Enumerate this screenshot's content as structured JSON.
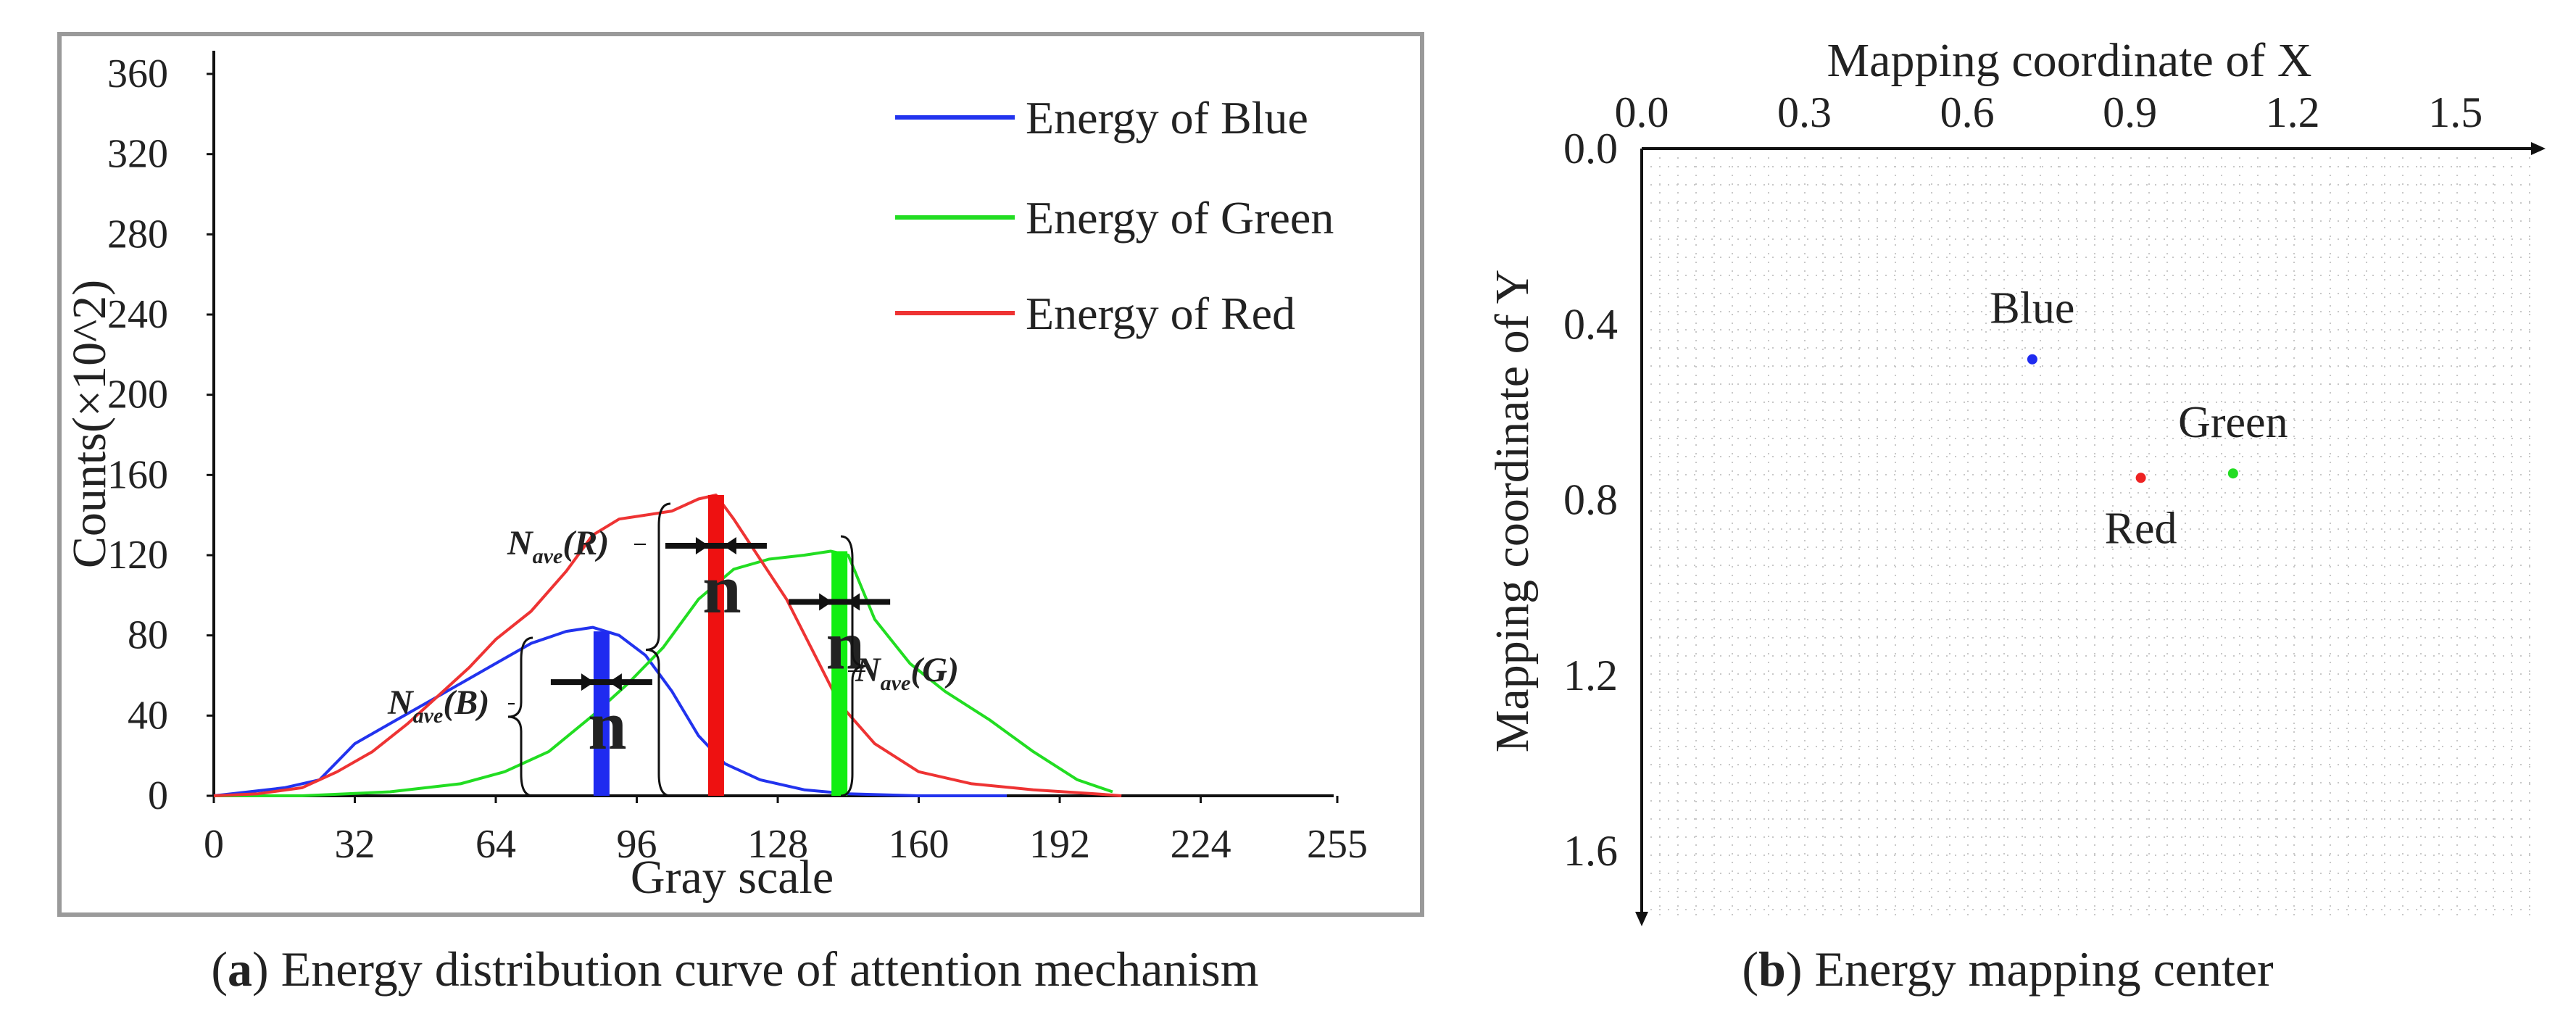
{
  "chart_data": [
    {
      "type": "line",
      "panel": "a",
      "title": "",
      "xlabel": "Gray scale",
      "ylabel": "Counts(×10^2)",
      "xlim": [
        0,
        255
      ],
      "ylim": [
        0,
        360
      ],
      "x_ticks": [
        "0",
        "32",
        "64",
        "96",
        "128",
        "160",
        "192",
        "224",
        "255"
      ],
      "x_tick_values": [
        0,
        32,
        64,
        96,
        128,
        160,
        192,
        224,
        255
      ],
      "y_ticks": [
        "0",
        "40",
        "80",
        "120",
        "160",
        "200",
        "240",
        "280",
        "320",
        "360"
      ],
      "y_tick_values": [
        0,
        40,
        80,
        120,
        160,
        200,
        240,
        280,
        320,
        360
      ],
      "legend_position": "top-right",
      "series": [
        {
          "name": "Energy of Blue",
          "color": "#2233ee",
          "points": [
            [
              0,
              0
            ],
            [
              8,
              2
            ],
            [
              16,
              4
            ],
            [
              24,
              8
            ],
            [
              32,
              26
            ],
            [
              40,
              36
            ],
            [
              48,
              46
            ],
            [
              56,
              56
            ],
            [
              64,
              66
            ],
            [
              72,
              76
            ],
            [
              80,
              82
            ],
            [
              86,
              84
            ],
            [
              92,
              80
            ],
            [
              98,
              70
            ],
            [
              104,
              52
            ],
            [
              110,
              30
            ],
            [
              116,
              16
            ],
            [
              124,
              8
            ],
            [
              134,
              3
            ],
            [
              144,
              1
            ],
            [
              160,
              0
            ],
            [
              180,
              0
            ]
          ]
        },
        {
          "name": "Energy of Green",
          "color": "#22dd22",
          "points": [
            [
              0,
              0
            ],
            [
              20,
              0
            ],
            [
              40,
              2
            ],
            [
              56,
              6
            ],
            [
              66,
              12
            ],
            [
              76,
              22
            ],
            [
              86,
              40
            ],
            [
              94,
              56
            ],
            [
              102,
              74
            ],
            [
              110,
              98
            ],
            [
              118,
              113
            ],
            [
              126,
              118
            ],
            [
              134,
              120
            ],
            [
              140,
              122
            ],
            [
              144,
              120
            ],
            [
              150,
              88
            ],
            [
              158,
              66
            ],
            [
              166,
              52
            ],
            [
              176,
              38
            ],
            [
              186,
              22
            ],
            [
              196,
              8
            ],
            [
              204,
              2
            ]
          ]
        },
        {
          "name": "Energy of Red",
          "color": "#ee3333",
          "points": [
            [
              0,
              0
            ],
            [
              10,
              1
            ],
            [
              20,
              4
            ],
            [
              28,
              12
            ],
            [
              36,
              22
            ],
            [
              44,
              36
            ],
            [
              52,
              52
            ],
            [
              58,
              64
            ],
            [
              64,
              78
            ],
            [
              72,
              92
            ],
            [
              80,
              112
            ],
            [
              86,
              130
            ],
            [
              92,
              138
            ],
            [
              98,
              140
            ],
            [
              104,
              142
            ],
            [
              110,
              148
            ],
            [
              114,
              150
            ],
            [
              118,
              138
            ],
            [
              124,
              118
            ],
            [
              130,
              98
            ],
            [
              136,
              72
            ],
            [
              142,
              46
            ],
            [
              150,
              26
            ],
            [
              160,
              12
            ],
            [
              172,
              6
            ],
            [
              186,
              3
            ],
            [
              200,
              1
            ],
            [
              206,
              0
            ]
          ]
        }
      ],
      "markers": [
        {
          "series": "Blue",
          "x": 88,
          "height": 82,
          "color": "#1f2bf0",
          "label": "N",
          "sub": "ave",
          "paren": "(B)"
        },
        {
          "series": "Red",
          "x": 114,
          "height": 150,
          "color": "#ee1111",
          "label": "N",
          "sub": "ave",
          "paren": "(R)"
        },
        {
          "series": "Green",
          "x": 142,
          "height": 122,
          "color": "#11ee11",
          "label": "N",
          "sub": "ave",
          "paren": "(G)"
        }
      ],
      "interval_label": "n",
      "caption_prefix": "(",
      "caption_bold": "a",
      "caption_text": ") Energy distribution curve of attention mechanism"
    },
    {
      "type": "scatter",
      "panel": "b",
      "xlabel": "Mapping coordinate of X",
      "ylabel": "Mapping coordinate of Y",
      "xlim": [
        0,
        1.65
      ],
      "ylim": [
        0,
        1.75
      ],
      "x_ticks": [
        "0.0",
        "0.3",
        "0.6",
        "0.9",
        "1.2",
        "1.5"
      ],
      "x_tick_values": [
        0,
        0.3,
        0.6,
        0.9,
        1.2,
        1.5
      ],
      "y_ticks": [
        "0.0",
        "0.4",
        "0.8",
        "1.2",
        "1.6"
      ],
      "y_tick_values": [
        0,
        0.4,
        0.8,
        1.2,
        1.6
      ],
      "points": [
        {
          "label": "Blue",
          "x": 0.72,
          "y": 0.48,
          "color": "#1f2bf0",
          "label_pos": "above"
        },
        {
          "label": "Green",
          "x": 1.09,
          "y": 0.74,
          "color": "#22dd22",
          "label_pos": "above"
        },
        {
          "label": "Red",
          "x": 0.92,
          "y": 0.75,
          "color": "#ee2222",
          "label_pos": "below"
        }
      ],
      "grid": true,
      "caption_prefix": "(",
      "caption_bold": "b",
      "caption_text": ") Energy mapping center"
    }
  ]
}
